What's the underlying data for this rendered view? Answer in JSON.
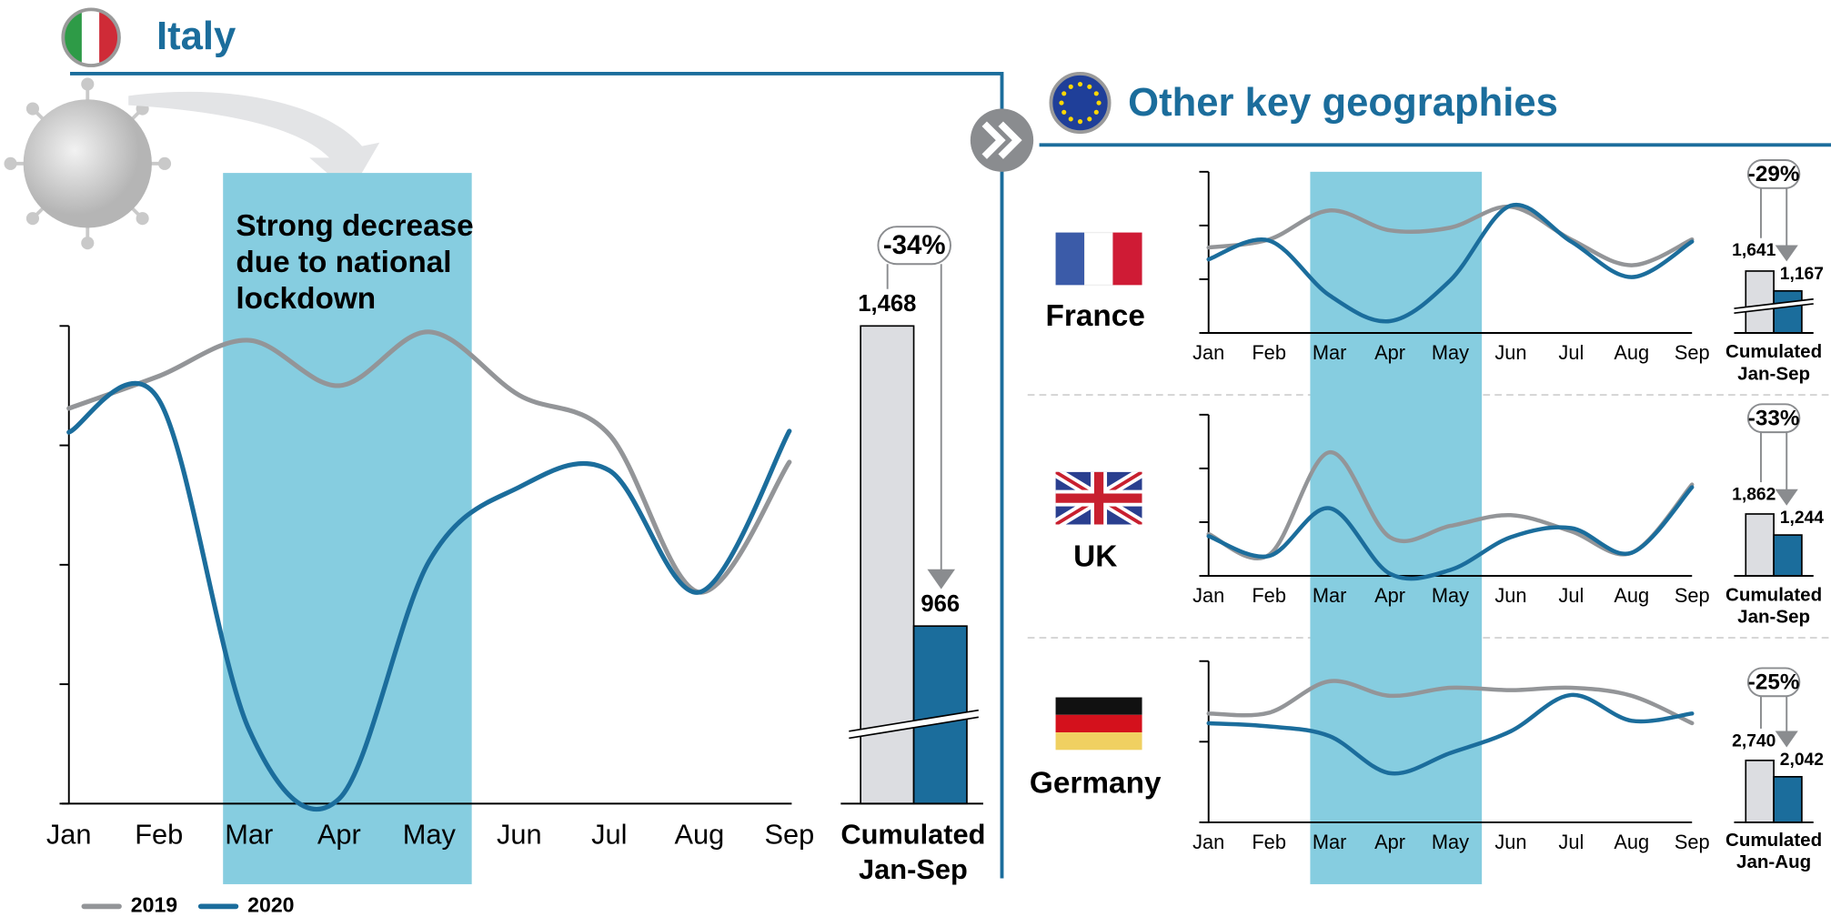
{
  "header": {
    "title": "Italy"
  },
  "section": {
    "title": "Other key geographies"
  },
  "chart_data": [
    {
      "type": "line",
      "annotation": [
        "Strong decrease",
        "due to national",
        "lockdown"
      ],
      "categories": [
        "Jan",
        "Feb",
        "Mar",
        "Apr",
        "May",
        "Jun",
        "Jul",
        "Aug",
        "Sep"
      ],
      "series": [
        {
          "name": "2019",
          "color": "#939598",
          "values": [
            3.31,
            3.58,
            3.88,
            3.5,
            3.95,
            3.42,
            3.09,
            1.77,
            2.86
          ]
        },
        {
          "name": "2020",
          "color": "#1b6d9c",
          "values": [
            3.11,
            3.38,
            0.62,
            0.04,
            2.03,
            2.65,
            2.79,
            1.77,
            3.12
          ]
        }
      ],
      "ylim": [
        0,
        4
      ],
      "yticks": [
        0,
        1,
        2,
        3,
        4
      ]
    },
    {
      "type": "bar",
      "values": [
        1468,
        966
      ],
      "value_labels": [
        "1,468",
        "966"
      ],
      "colors": [
        "#dcdde1",
        "#1b6d9c"
      ],
      "change_label": "-34%",
      "xlabel": [
        "Cumulated",
        "Jan-Sep"
      ],
      "ylim": [
        669,
        1468
      ]
    },
    {
      "type": "line",
      "title": "France",
      "categories": [
        "Jan",
        "Feb",
        "Mar",
        "Apr",
        "May",
        "Jun",
        "Jul",
        "Aug",
        "Sep"
      ],
      "series": [
        {
          "color": "#939598",
          "values": [
            1.59,
            1.74,
            2.28,
            1.91,
            1.96,
            2.35,
            1.74,
            1.26,
            1.74
          ]
        },
        {
          "color": "#1b6d9c",
          "values": [
            1.37,
            1.72,
            0.7,
            0.22,
            0.98,
            2.37,
            1.7,
            1.04,
            1.7
          ]
        }
      ],
      "ylim": [
        0,
        3
      ],
      "yticks": [
        0,
        1,
        2,
        3
      ]
    },
    {
      "type": "bar",
      "values": [
        1641,
        1167
      ],
      "value_labels": [
        "1,641",
        "1,167"
      ],
      "colors": [
        "#dcdde1",
        "#1b6d9c"
      ],
      "change_label": "-29%",
      "xlabel": [
        "Cumulated",
        "Jan-Sep"
      ],
      "ylim": [
        163,
        1641
      ]
    },
    {
      "type": "line",
      "title": "UK",
      "categories": [
        "Jan",
        "Feb",
        "Mar",
        "Apr",
        "May",
        "Jun",
        "Jul",
        "Aug",
        "Sep"
      ],
      "series": [
        {
          "color": "#939598",
          "values": [
            0.78,
            0.39,
            2.3,
            0.72,
            0.93,
            1.13,
            0.83,
            0.43,
            1.7
          ]
        },
        {
          "color": "#1b6d9c",
          "values": [
            0.74,
            0.37,
            1.26,
            0.04,
            0.11,
            0.72,
            0.89,
            0.43,
            1.65
          ]
        }
      ],
      "ylim": [
        0,
        3
      ],
      "yticks": [
        0,
        1,
        2,
        3
      ]
    },
    {
      "type": "bar",
      "values": [
        1862,
        1244
      ],
      "value_labels": [
        "1,862",
        "1,244"
      ],
      "colors": [
        "#dcdde1",
        "#1b6d9c"
      ],
      "change_label": "-33%",
      "xlabel": [
        "Cumulated",
        "Jan-Sep"
      ],
      "ylim": [
        42,
        1862
      ]
    },
    {
      "type": "line",
      "title": "Germany",
      "categories": [
        "Jan",
        "Feb",
        "Mar",
        "Apr",
        "May",
        "Jun",
        "Jul",
        "Aug",
        "Sep"
      ],
      "series": [
        {
          "color": "#939598",
          "values": [
            1.35,
            1.36,
            1.75,
            1.57,
            1.67,
            1.64,
            1.67,
            1.57,
            1.23
          ]
        },
        {
          "color": "#1b6d9c",
          "values": [
            1.23,
            1.19,
            1.07,
            0.61,
            0.86,
            1.13,
            1.58,
            1.26,
            1.35
          ]
        }
      ],
      "ylim": [
        0,
        2
      ],
      "yticks": [
        0,
        1,
        2
      ]
    },
    {
      "type": "bar",
      "values": [
        2740,
        2042
      ],
      "value_labels": [
        "2,740",
        "2,042"
      ],
      "colors": [
        "#dcdde1",
        "#1b6d9c"
      ],
      "change_label": "-25%",
      "xlabel": [
        "Cumulated",
        "Jan-Aug"
      ],
      "ylim": [
        98,
        2740
      ]
    }
  ]
}
